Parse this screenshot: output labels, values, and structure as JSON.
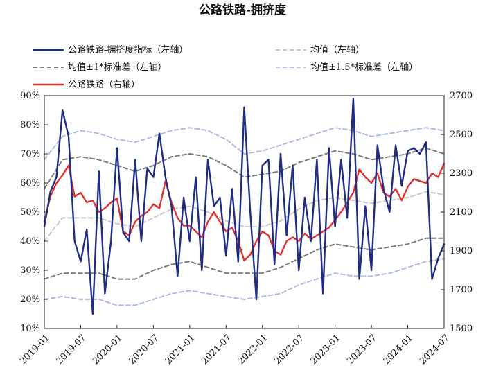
{
  "chart_data": {
    "type": "line",
    "title": "公路铁路-拥挤度",
    "left_axis": {
      "ticks": [
        "10%",
        "20%",
        "30%",
        "40%",
        "50%",
        "60%",
        "70%",
        "80%",
        "90%"
      ],
      "ylim": [
        10,
        90
      ]
    },
    "right_axis": {
      "ticks": [
        "1500",
        "1700",
        "1900",
        "2100",
        "2300",
        "2500",
        "2700"
      ],
      "ylim": [
        1500,
        2700
      ]
    },
    "x_ticks": [
      "2019-01",
      "2019-07",
      "2020-01",
      "2020-07",
      "2021-01",
      "2021-07",
      "2022-01",
      "2022-07",
      "2023-01",
      "2023-07",
      "2024-01",
      "2024-07"
    ],
    "x_range_months": [
      "2019-01",
      "2024-07"
    ],
    "legend": [
      {
        "key": "congestion",
        "name": "公路铁路-拥挤度指标（左轴）",
        "color": "#1f2d86",
        "style": "solid"
      },
      {
        "key": "mean",
        "name": "均值（左轴）",
        "color": "#c9c9c9",
        "style": "dashed"
      },
      {
        "key": "band1",
        "name": "均值±1*标准差（左轴）",
        "color": "#7a7a7a",
        "style": "dashed"
      },
      {
        "key": "band15",
        "name": "均值±1.5*标准差（左轴）",
        "color": "#aabde0",
        "style": "dashed"
      },
      {
        "key": "road_rail",
        "name": "公路铁路（右轴）",
        "color": "#e03030",
        "style": "solid"
      }
    ],
    "series": [
      {
        "key": "congestion",
        "axis": "left",
        "points": [
          [
            "2019-01",
            45
          ],
          [
            "2019-02",
            57
          ],
          [
            "2019-03",
            62
          ],
          [
            "2019-04",
            85
          ],
          [
            "2019-05",
            76
          ],
          [
            "2019-06",
            40
          ],
          [
            "2019-07",
            33
          ],
          [
            "2019-08",
            44
          ],
          [
            "2019-09",
            15
          ],
          [
            "2019-10",
            64
          ],
          [
            "2019-11",
            22
          ],
          [
            "2019-12",
            40
          ],
          [
            "2020-01",
            72
          ],
          [
            "2020-02",
            43
          ],
          [
            "2020-03",
            40
          ],
          [
            "2020-04",
            68
          ],
          [
            "2020-05",
            40
          ],
          [
            "2020-06",
            65
          ],
          [
            "2020-07",
            62
          ],
          [
            "2020-08",
            77
          ],
          [
            "2020-09",
            62
          ],
          [
            "2020-10",
            52
          ],
          [
            "2020-11",
            28
          ],
          [
            "2020-12",
            55
          ],
          [
            "2021-01",
            40
          ],
          [
            "2021-02",
            62
          ],
          [
            "2021-03",
            30
          ],
          [
            "2021-04",
            68
          ],
          [
            "2021-05",
            52
          ],
          [
            "2021-06",
            55
          ],
          [
            "2021-07",
            35
          ],
          [
            "2021-08",
            58
          ],
          [
            "2021-09",
            33
          ],
          [
            "2021-10",
            86
          ],
          [
            "2021-11",
            50
          ],
          [
            "2021-12",
            20
          ],
          [
            "2022-01",
            66
          ],
          [
            "2022-02",
            68
          ],
          [
            "2022-03",
            32
          ],
          [
            "2022-04",
            70
          ],
          [
            "2022-05",
            42
          ],
          [
            "2022-06",
            66
          ],
          [
            "2022-07",
            30
          ],
          [
            "2022-08",
            55
          ],
          [
            "2022-09",
            40
          ],
          [
            "2022-10",
            68
          ],
          [
            "2022-11",
            22
          ],
          [
            "2022-12",
            72
          ],
          [
            "2023-01",
            45
          ],
          [
            "2023-02",
            68
          ],
          [
            "2023-03",
            48
          ],
          [
            "2023-04",
            89
          ],
          [
            "2023-05",
            27
          ],
          [
            "2023-06",
            52
          ],
          [
            "2023-07",
            30
          ],
          [
            "2023-08",
            73
          ],
          [
            "2023-09",
            58
          ],
          [
            "2023-10",
            50
          ],
          [
            "2023-11",
            73
          ],
          [
            "2023-12",
            59
          ],
          [
            "2024-01",
            71
          ],
          [
            "2024-02",
            72
          ],
          [
            "2024-03",
            70
          ],
          [
            "2024-04",
            74
          ],
          [
            "2024-05",
            27
          ],
          [
            "2024-06",
            34
          ],
          [
            "2024-07",
            39
          ]
        ]
      },
      {
        "key": "mean",
        "axis": "left",
        "points": [
          [
            "2019-01",
            40
          ],
          [
            "2019-04",
            48
          ],
          [
            "2019-07",
            48
          ],
          [
            "2019-10",
            48
          ],
          [
            "2020-01",
            46
          ],
          [
            "2020-04",
            45
          ],
          [
            "2020-07",
            48
          ],
          [
            "2020-10",
            51
          ],
          [
            "2021-01",
            52
          ],
          [
            "2021-04",
            50
          ],
          [
            "2021-07",
            47
          ],
          [
            "2021-10",
            45
          ],
          [
            "2022-01",
            45
          ],
          [
            "2022-04",
            47
          ],
          [
            "2022-07",
            51
          ],
          [
            "2022-10",
            54
          ],
          [
            "2023-01",
            55
          ],
          [
            "2023-04",
            54
          ],
          [
            "2023-07",
            53
          ],
          [
            "2023-10",
            54
          ],
          [
            "2024-01",
            55
          ],
          [
            "2024-04",
            57
          ],
          [
            "2024-07",
            56
          ]
        ]
      },
      {
        "key": "band1_upper",
        "axis": "left",
        "points": [
          [
            "2019-01",
            58
          ],
          [
            "2019-04",
            68
          ],
          [
            "2019-07",
            69
          ],
          [
            "2019-10",
            68
          ],
          [
            "2020-01",
            66
          ],
          [
            "2020-04",
            64
          ],
          [
            "2020-07",
            66
          ],
          [
            "2020-10",
            69
          ],
          [
            "2021-01",
            70
          ],
          [
            "2021-04",
            69
          ],
          [
            "2021-07",
            66
          ],
          [
            "2021-10",
            62
          ],
          [
            "2022-01",
            63
          ],
          [
            "2022-04",
            64
          ],
          [
            "2022-07",
            67
          ],
          [
            "2022-10",
            69
          ],
          [
            "2023-01",
            71
          ],
          [
            "2023-04",
            70
          ],
          [
            "2023-07",
            68
          ],
          [
            "2023-10",
            69
          ],
          [
            "2024-01",
            70
          ],
          [
            "2024-04",
            72
          ],
          [
            "2024-07",
            70
          ]
        ]
      },
      {
        "key": "band1_lower",
        "axis": "left",
        "points": [
          [
            "2019-01",
            27
          ],
          [
            "2019-04",
            29
          ],
          [
            "2019-07",
            29
          ],
          [
            "2019-10",
            29
          ],
          [
            "2020-01",
            27
          ],
          [
            "2020-04",
            27
          ],
          [
            "2020-07",
            30
          ],
          [
            "2020-10",
            32
          ],
          [
            "2021-01",
            33
          ],
          [
            "2021-04",
            31
          ],
          [
            "2021-07",
            29
          ],
          [
            "2021-10",
            29
          ],
          [
            "2022-01",
            29
          ],
          [
            "2022-04",
            31
          ],
          [
            "2022-07",
            34
          ],
          [
            "2022-10",
            37
          ],
          [
            "2023-01",
            39
          ],
          [
            "2023-04",
            38
          ],
          [
            "2023-07",
            37
          ],
          [
            "2023-10",
            38
          ],
          [
            "2024-01",
            39
          ],
          [
            "2024-04",
            41
          ],
          [
            "2024-07",
            41
          ]
        ]
      },
      {
        "key": "band15_upper",
        "axis": "left",
        "points": [
          [
            "2019-01",
            68
          ],
          [
            "2019-04",
            76
          ],
          [
            "2019-07",
            78
          ],
          [
            "2019-10",
            77
          ],
          [
            "2020-01",
            75
          ],
          [
            "2020-04",
            74
          ],
          [
            "2020-07",
            76
          ],
          [
            "2020-10",
            78
          ],
          [
            "2021-01",
            79
          ],
          [
            "2021-04",
            78
          ],
          [
            "2021-07",
            75
          ],
          [
            "2021-10",
            70
          ],
          [
            "2022-01",
            71
          ],
          [
            "2022-04",
            73
          ],
          [
            "2022-07",
            75
          ],
          [
            "2022-10",
            77
          ],
          [
            "2023-01",
            79
          ],
          [
            "2023-04",
            78
          ],
          [
            "2023-07",
            76
          ],
          [
            "2023-10",
            77
          ],
          [
            "2024-01",
            78
          ],
          [
            "2024-04",
            79
          ],
          [
            "2024-07",
            78
          ]
        ]
      },
      {
        "key": "band15_lower",
        "axis": "left",
        "points": [
          [
            "2019-01",
            20
          ],
          [
            "2019-04",
            21
          ],
          [
            "2019-07",
            20
          ],
          [
            "2019-10",
            20
          ],
          [
            "2020-01",
            18
          ],
          [
            "2020-04",
            18
          ],
          [
            "2020-07",
            20
          ],
          [
            "2020-10",
            22
          ],
          [
            "2021-01",
            23
          ],
          [
            "2021-04",
            22
          ],
          [
            "2021-07",
            21
          ],
          [
            "2021-10",
            20
          ],
          [
            "2022-01",
            21
          ],
          [
            "2022-04",
            22
          ],
          [
            "2022-07",
            25
          ],
          [
            "2022-10",
            27
          ],
          [
            "2023-01",
            29
          ],
          [
            "2023-04",
            28
          ],
          [
            "2023-07",
            28
          ],
          [
            "2023-10",
            29
          ],
          [
            "2024-01",
            31
          ],
          [
            "2024-04",
            33
          ],
          [
            "2024-07",
            34
          ]
        ]
      },
      {
        "key": "road_rail",
        "axis": "right",
        "points": [
          [
            "2019-01",
            2050
          ],
          [
            "2019-02",
            2180
          ],
          [
            "2019-03",
            2250
          ],
          [
            "2019-04",
            2290
          ],
          [
            "2019-05",
            2340
          ],
          [
            "2019-06",
            2180
          ],
          [
            "2019-07",
            2200
          ],
          [
            "2019-08",
            2150
          ],
          [
            "2019-09",
            2160
          ],
          [
            "2019-10",
            2100
          ],
          [
            "2019-11",
            2120
          ],
          [
            "2019-12",
            2150
          ],
          [
            "2020-01",
            2170
          ],
          [
            "2020-02",
            2000
          ],
          [
            "2020-03",
            1980
          ],
          [
            "2020-04",
            2050
          ],
          [
            "2020-05",
            2080
          ],
          [
            "2020-06",
            2100
          ],
          [
            "2020-07",
            2140
          ],
          [
            "2020-08",
            2120
          ],
          [
            "2020-09",
            2260
          ],
          [
            "2020-10",
            2150
          ],
          [
            "2020-11",
            2070
          ],
          [
            "2020-12",
            2030
          ],
          [
            "2021-01",
            2030
          ],
          [
            "2021-02",
            2000
          ],
          [
            "2021-03",
            1970
          ],
          [
            "2021-04",
            2050
          ],
          [
            "2021-05",
            2100
          ],
          [
            "2021-06",
            2050
          ],
          [
            "2021-07",
            2000
          ],
          [
            "2021-08",
            2020
          ],
          [
            "2021-09",
            1950
          ],
          [
            "2021-10",
            1850
          ],
          [
            "2021-11",
            1880
          ],
          [
            "2021-12",
            1950
          ],
          [
            "2022-01",
            2000
          ],
          [
            "2022-02",
            1980
          ],
          [
            "2022-03",
            1900
          ],
          [
            "2022-04",
            1880
          ],
          [
            "2022-05",
            1950
          ],
          [
            "2022-06",
            1970
          ],
          [
            "2022-07",
            1950
          ],
          [
            "2022-08",
            1990
          ],
          [
            "2022-09",
            1960
          ],
          [
            "2022-10",
            1980
          ],
          [
            "2022-11",
            2000
          ],
          [
            "2022-12",
            2020
          ],
          [
            "2023-01",
            2060
          ],
          [
            "2023-02",
            2100
          ],
          [
            "2023-03",
            2150
          ],
          [
            "2023-04",
            2200
          ],
          [
            "2023-05",
            2320
          ],
          [
            "2023-06",
            2280
          ],
          [
            "2023-07",
            2250
          ],
          [
            "2023-08",
            2300
          ],
          [
            "2023-09",
            2200
          ],
          [
            "2023-10",
            2180
          ],
          [
            "2023-11",
            2220
          ],
          [
            "2023-12",
            2160
          ],
          [
            "2024-01",
            2230
          ],
          [
            "2024-02",
            2270
          ],
          [
            "2024-03",
            2260
          ],
          [
            "2024-04",
            2250
          ],
          [
            "2024-05",
            2300
          ],
          [
            "2024-06",
            2280
          ],
          [
            "2024-07",
            2350
          ]
        ]
      }
    ],
    "grid": false
  }
}
